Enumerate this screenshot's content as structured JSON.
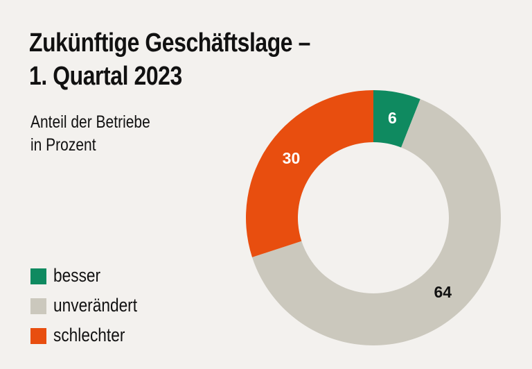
{
  "chart_data": {
    "type": "pie",
    "variant": "donut",
    "title": "Zukünftige Geschäftslage – 1. Quartal 2023",
    "title_lines": [
      "Zukünftige Geschäftslage –",
      "1. Quartal 2023"
    ],
    "subtitle_lines": [
      "Anteil der Betriebe",
      "in Prozent"
    ],
    "unit": "Prozent",
    "legend_position": "bottom-left",
    "slices": [
      {
        "label": "besser",
        "value": 6,
        "color": "#0f8a60",
        "label_color": "#ffffff"
      },
      {
        "label": "unverändert",
        "value": 64,
        "color": "#cbc8bd",
        "label_color": "#111111"
      },
      {
        "label": "schlechter",
        "value": 30,
        "color": "#e84e0f",
        "label_color": "#ffffff"
      }
    ]
  },
  "background": "#f3f1ee"
}
